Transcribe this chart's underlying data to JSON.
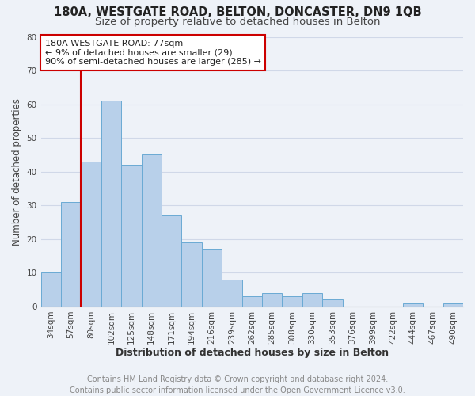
{
  "title1": "180A, WESTGATE ROAD, BELTON, DONCASTER, DN9 1QB",
  "title2": "Size of property relative to detached houses in Belton",
  "xlabel": "Distribution of detached houses by size in Belton",
  "ylabel": "Number of detached properties",
  "bar_labels": [
    "34sqm",
    "57sqm",
    "80sqm",
    "102sqm",
    "125sqm",
    "148sqm",
    "171sqm",
    "194sqm",
    "216sqm",
    "239sqm",
    "262sqm",
    "285sqm",
    "308sqm",
    "330sqm",
    "353sqm",
    "376sqm",
    "399sqm",
    "422sqm",
    "444sqm",
    "467sqm",
    "490sqm"
  ],
  "bar_values": [
    10,
    31,
    43,
    61,
    42,
    45,
    27,
    19,
    17,
    8,
    3,
    4,
    3,
    4,
    2,
    0,
    0,
    0,
    1,
    0,
    1
  ],
  "bar_color": "#b8d0ea",
  "bar_edge_color": "#6aaad4",
  "vline_color": "#cc0000",
  "vline_position": 1.5,
  "annotation_box_text": "180A WESTGATE ROAD: 77sqm\n← 9% of detached houses are smaller (29)\n90% of semi-detached houses are larger (285) →",
  "annotation_box_facecolor": "#ffffff",
  "annotation_box_edgecolor": "#cc0000",
  "ylim": [
    0,
    80
  ],
  "yticks": [
    0,
    10,
    20,
    30,
    40,
    50,
    60,
    70,
    80
  ],
  "grid_color": "#d0d8e8",
  "background_color": "#eef2f8",
  "footer_line1": "Contains HM Land Registry data © Crown copyright and database right 2024.",
  "footer_line2": "Contains public sector information licensed under the Open Government Licence v3.0.",
  "title1_fontsize": 10.5,
  "title2_fontsize": 9.5,
  "xlabel_fontsize": 9,
  "ylabel_fontsize": 8.5,
  "annotation_fontsize": 8,
  "footer_fontsize": 7,
  "tick_fontsize": 7.5
}
